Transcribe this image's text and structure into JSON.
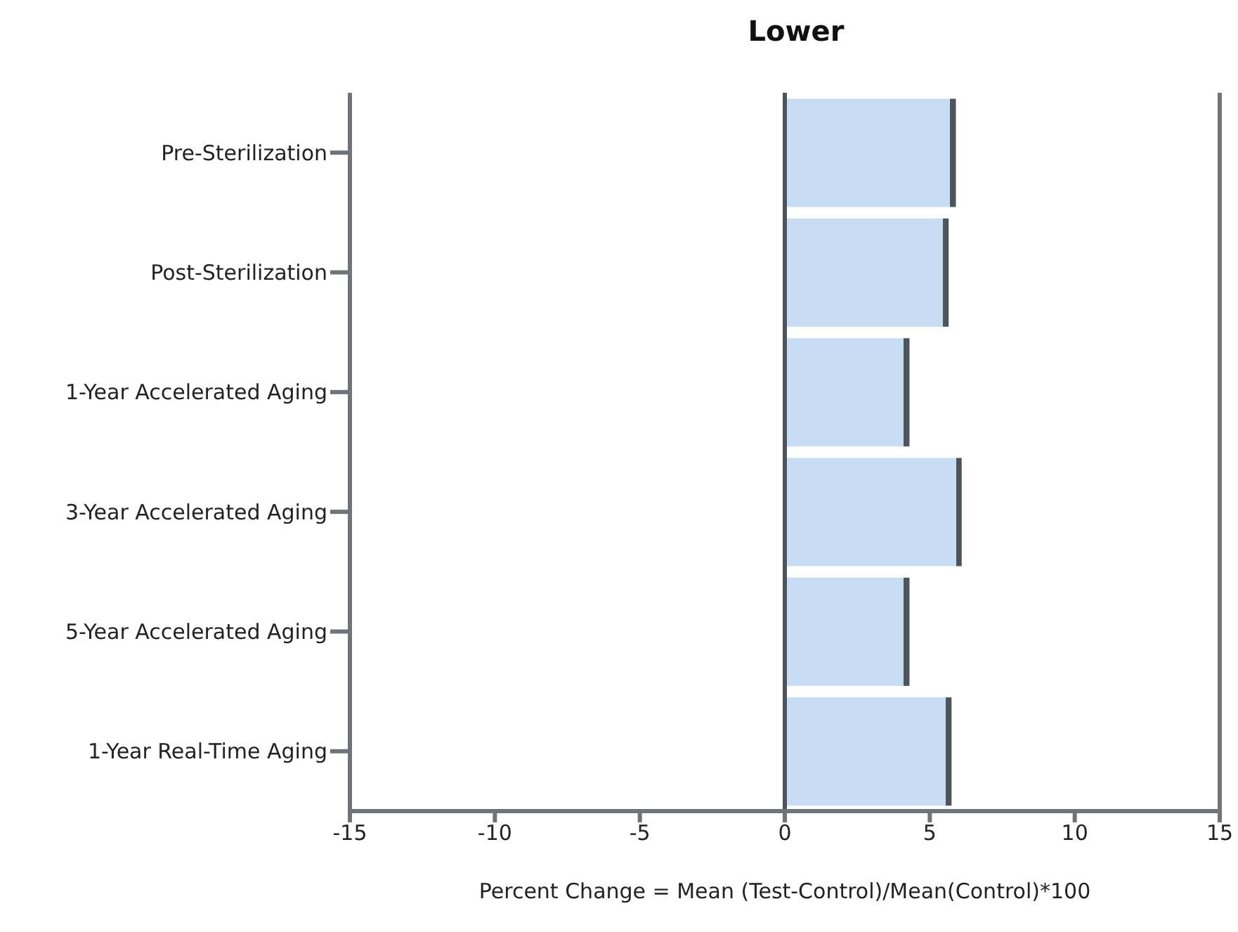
{
  "chart_data": {
    "type": "bar",
    "orientation": "horizontal",
    "title": "Lower",
    "xlabel": "Percent Change = Mean (Test-Control)/Mean(Control)*100",
    "categories": [
      "Pre-Sterilization",
      "Post-Sterilization",
      "1-Year Accelerated Aging",
      "3-Year Accelerated Aging",
      "5-Year Accelerated Aging",
      "1-Year Real-Time Aging"
    ],
    "series": [
      {
        "color": "#c6ddf3",
        "values": [
          5.9,
          5.65,
          4.3,
          6.1,
          4.3,
          5.75
        ]
      }
    ],
    "xlim": [
      -15,
      15
    ],
    "xticks": [
      -15,
      -10,
      -5,
      0,
      5,
      10,
      15
    ],
    "ref_lines": [
      {
        "axis": "x",
        "value": 0,
        "color": "#4d545c"
      }
    ],
    "grid": false,
    "legend": false
  }
}
